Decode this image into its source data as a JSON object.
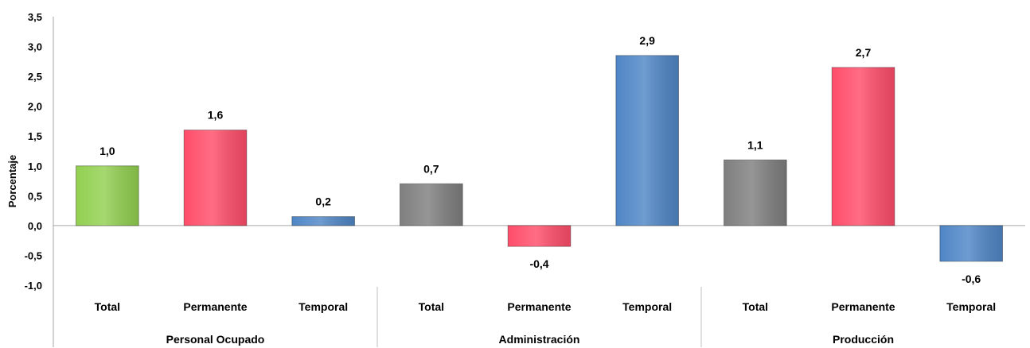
{
  "chart_data": {
    "type": "bar",
    "ylabel": "Porcentaje",
    "ylim": [
      -1.0,
      3.5
    ],
    "yticks": [
      "-1,0",
      "-0,5",
      "0,0",
      "0,5",
      "1,0",
      "1,5",
      "2,0",
      "2,5",
      "3,0",
      "3,5"
    ],
    "ytick_values": [
      -1.0,
      -0.5,
      0.0,
      0.5,
      1.0,
      1.5,
      2.0,
      2.5,
      3.0,
      3.5
    ],
    "groups": [
      {
        "name": "Personal Ocupado",
        "bars": [
          {
            "category": "Total",
            "value": 1.0,
            "label": "1,0",
            "color": "#92d050"
          },
          {
            "category": "Permanente",
            "value": 1.6,
            "label": "1,6",
            "color": "#ff4d6a"
          },
          {
            "category": "Temporal",
            "value": 0.15,
            "label": "0,2",
            "color": "#4f86c6"
          }
        ]
      },
      {
        "name": "Administración",
        "bars": [
          {
            "category": "Total",
            "value": 0.7,
            "label": "0,7",
            "color": "#7f7f7f"
          },
          {
            "category": "Permanente",
            "value": -0.35,
            "label": "-0,4",
            "color": "#ff4d6a"
          },
          {
            "category": "Temporal",
            "value": 2.85,
            "label": "2,9",
            "color": "#4f86c6"
          }
        ]
      },
      {
        "name": "Producción",
        "bars": [
          {
            "category": "Total",
            "value": 1.1,
            "label": "1,1",
            "color": "#7f7f7f"
          },
          {
            "category": "Permanente",
            "value": 2.65,
            "label": "2,7",
            "color": "#ff4d6a"
          },
          {
            "category": "Temporal",
            "value": -0.6,
            "label": "-0,6",
            "color": "#4f86c6"
          }
        ]
      }
    ]
  }
}
